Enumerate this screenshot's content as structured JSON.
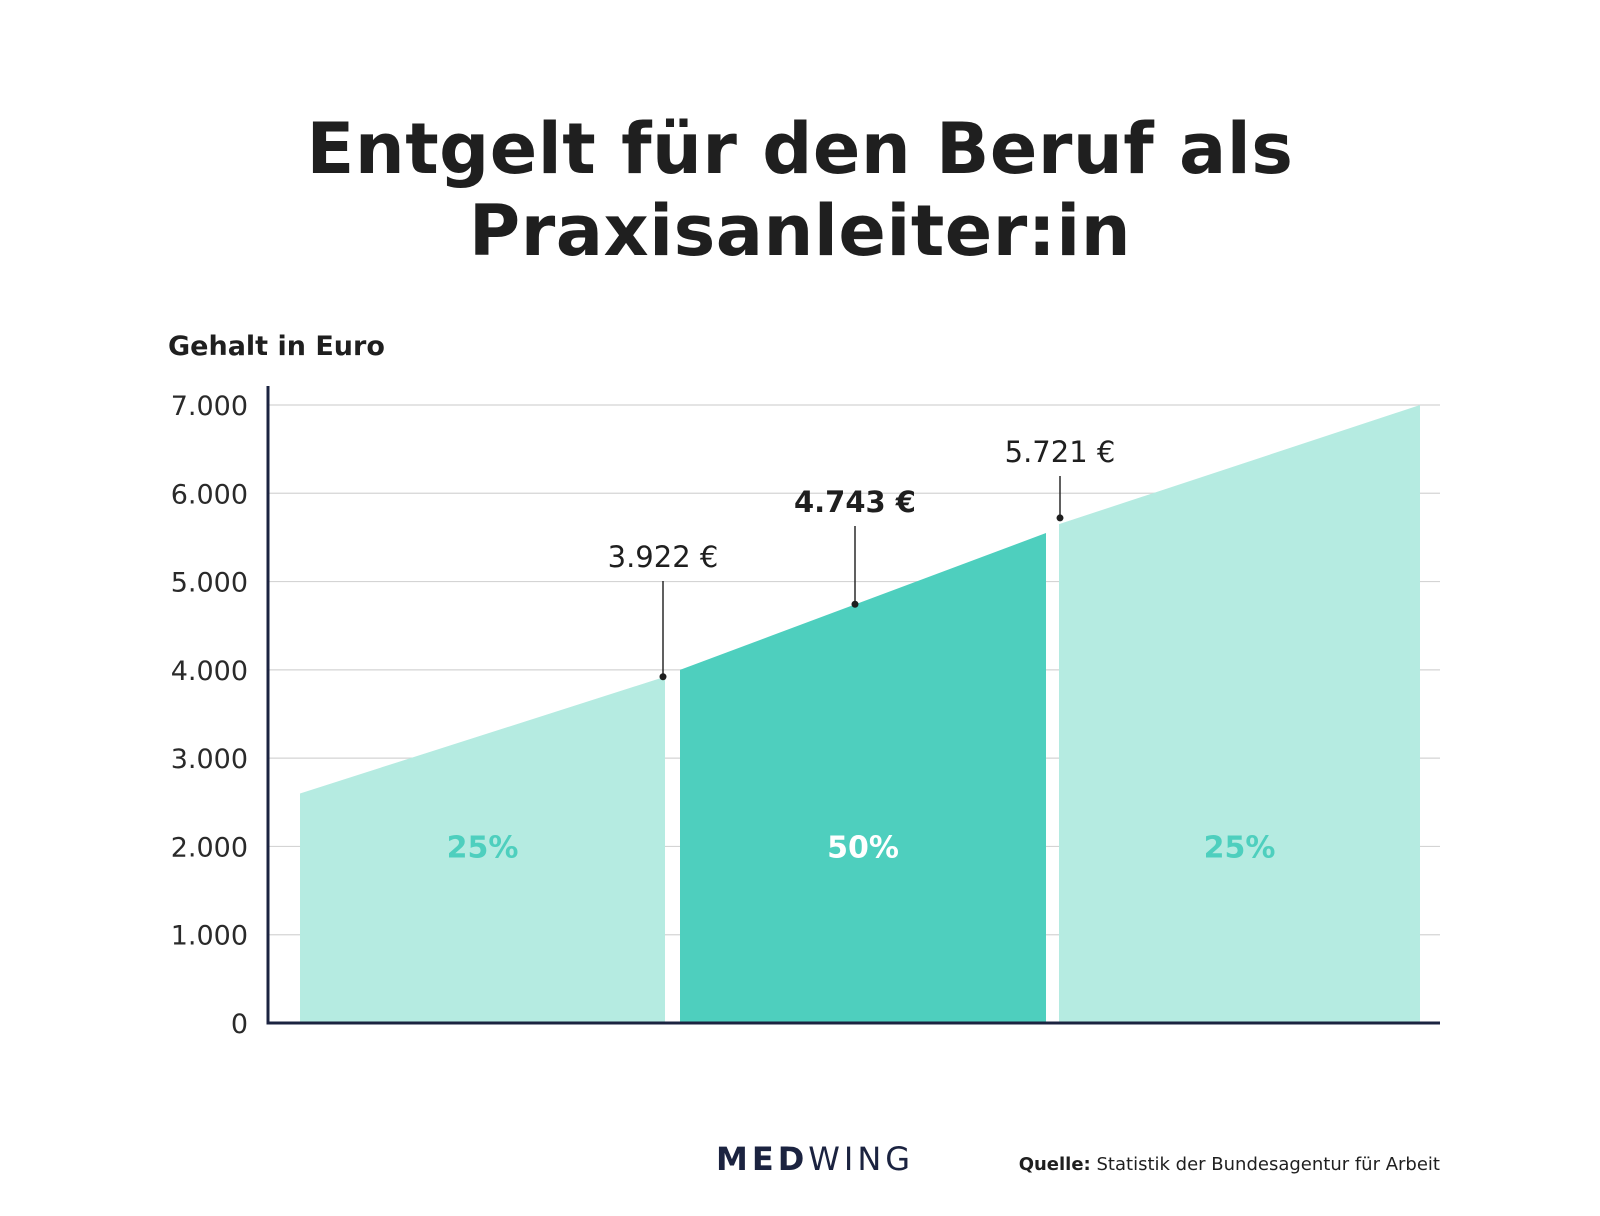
{
  "title": "Entgelt für den Beruf als Praxisanleiter:in",
  "footer": {
    "logo_bold": "MED",
    "logo_regular": "WING",
    "source_label": "Quelle:",
    "source_text": "Statistik der Bundesagentur für Arbeit"
  },
  "colors": {
    "light_band": "#b5ebe1",
    "dark_band": "#4ecfbe",
    "light_label": "#4ecfbe",
    "dark_label": "#ffffff",
    "axis": "#1b2340",
    "grid": "#d4d4d4"
  },
  "chart_data": {
    "type": "area",
    "title": "Entgelt für den Beruf als Praxisanleiter:in",
    "ylabel": "Gehalt in Euro",
    "ylim": [
      0,
      7000
    ],
    "yticks": [
      0,
      1000,
      2000,
      3000,
      4000,
      5000,
      6000,
      7000
    ],
    "ytick_labels": [
      "0",
      "1.000",
      "2.000",
      "3.000",
      "4.000",
      "5.000",
      "6.000",
      "7.000"
    ],
    "grid": true,
    "bands": [
      {
        "label": "25%",
        "start": 2600,
        "end": 3922,
        "style": "light"
      },
      {
        "label": "50%",
        "start": 4000,
        "end": 5550,
        "style": "dark"
      },
      {
        "label": "25%",
        "start": 5650,
        "end": 7000,
        "style": "light"
      }
    ],
    "markers": [
      {
        "label": "3.922 €",
        "value": 3922,
        "bold": false
      },
      {
        "label": "4.743 €",
        "value": 4743,
        "bold": true
      },
      {
        "label": "5.721 €",
        "value": 5721,
        "bold": false
      }
    ]
  }
}
